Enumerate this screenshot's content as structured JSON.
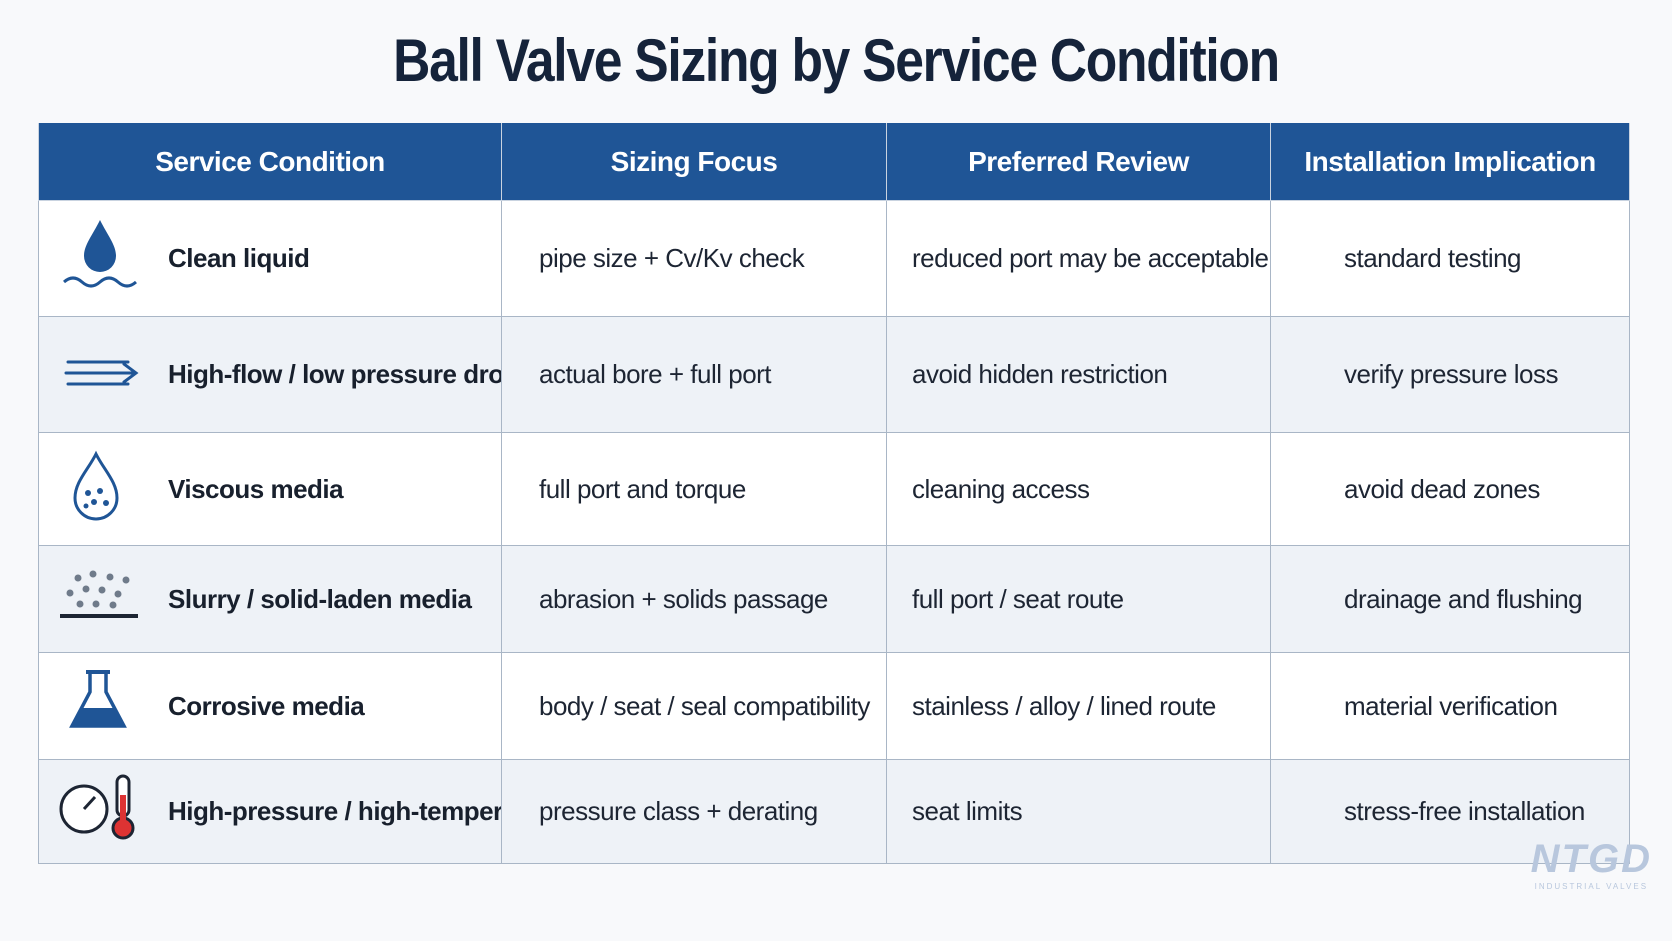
{
  "title": "Ball Valve Sizing by Service Condition",
  "table": {
    "headers": [
      "Service Condition",
      "Sizing Focus",
      "Preferred Review",
      "Installation Implication"
    ],
    "rows": [
      [
        "Clean liquid",
        "pipe size + Cv/Kv check",
        "reduced port may be acceptable",
        "standard testing"
      ],
      [
        "High-flow / low pressure drop",
        "actual bore + full port",
        "avoid hidden restriction",
        "verify pressure loss"
      ],
      [
        "Viscous media",
        "full port and torque",
        "cleaning access",
        "avoid dead zones"
      ],
      [
        "Slurry / solid-laden media",
        "abrasion + solids passage",
        "full port / seat route",
        "drainage and flushing"
      ],
      [
        "Corrosive media",
        "body / seat / seal compatibility",
        "stainless / alloy / lined route",
        "material verification"
      ],
      [
        "High-pressure / high-temperature",
        "pressure class + derating",
        "seat limits",
        "stress-free installation"
      ]
    ]
  },
  "logo": {
    "name": "NTGD",
    "tagline": "INDUSTRIAL VALVES"
  }
}
